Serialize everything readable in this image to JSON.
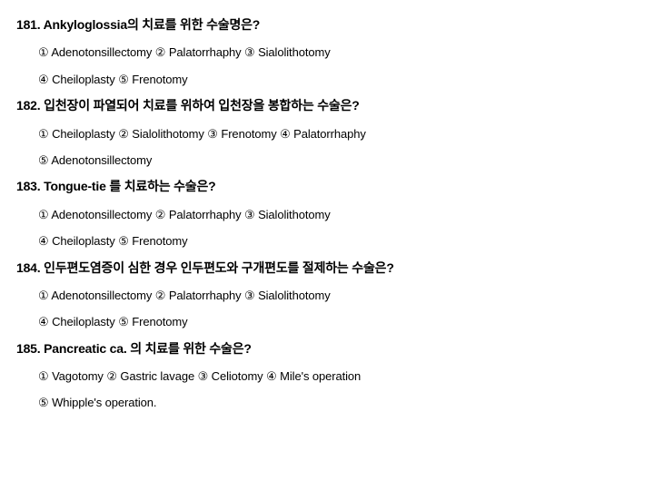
{
  "questions": [
    {
      "number": "181.",
      "text": "Ankyloglossia의 치료를 위한 수술명은?",
      "option_lines": [
        "① Adenotonsillectomy ② Palatorrhaphy ③ Sialolithotomy",
        "④ Cheiloplasty ⑤ Frenotomy"
      ]
    },
    {
      "number": "182.",
      "text": "입천장이 파열되어 치료를 위하여 입천장을 봉합하는 수술은?",
      "option_lines": [
        "① Cheiloplasty ② Sialolithotomy ③ Frenotomy ④ Palatorrhaphy",
        "⑤ Adenotonsillectomy"
      ]
    },
    {
      "number": "183.",
      "text": "Tongue-tie 를 치료하는 수술은?",
      "option_lines": [
        "① Adenotonsillectomy ② Palatorrhaphy ③ Sialolithotomy",
        "④ Cheiloplasty ⑤ Frenotomy"
      ]
    },
    {
      "number": "184.",
      "text": "인두편도염증이 심한 경우 인두편도와 구개편도를 절제하는 수술은?",
      "option_lines": [
        "① Adenotonsillectomy ② Palatorrhaphy ③ Sialolithotomy",
        "④ Cheiloplasty  ⑤ Frenotomy"
      ]
    },
    {
      "number": "185.",
      "text": "Pancreatic ca. 의 치료를 위한 수술은?",
      "option_lines": [
        "① Vagotomy ② Gastric lavage ③ Celiotomy ④ Mile's operation",
        "⑤ Whipple's operation."
      ]
    }
  ]
}
